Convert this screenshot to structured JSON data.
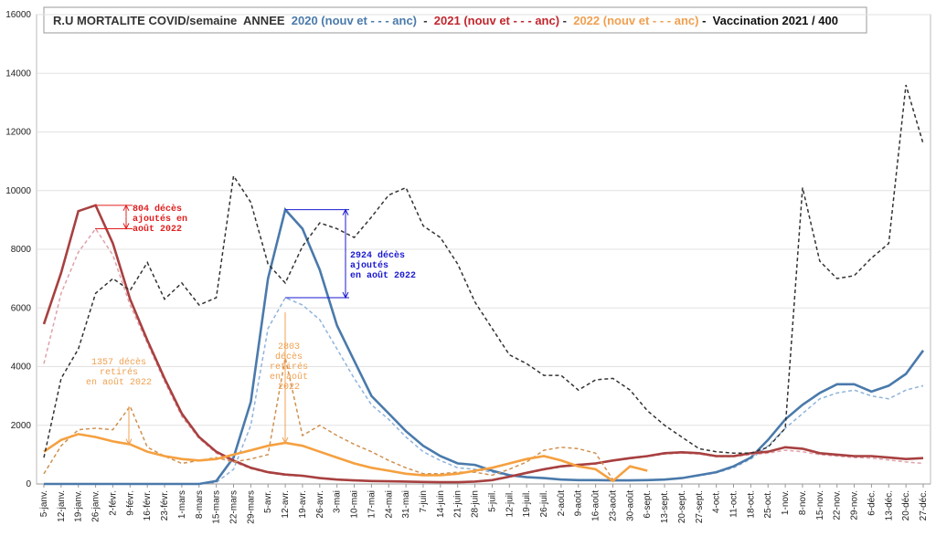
{
  "chart_data": {
    "type": "line",
    "title_parts": [
      {
        "text": "R.U MORTALITE COVID/semaine  ANNEE  ",
        "color": "#333333"
      },
      {
        "text": "2020 (nouv et - - - anc)",
        "color": "#4a7aab"
      },
      {
        "text": "  -  ",
        "color": "#333333"
      },
      {
        "text": "2021 (nouv et - - - anc)",
        "color": "#c0272d"
      },
      {
        "text": " -  ",
        "color": "#333333"
      },
      {
        "text": "2022 (nouv et - - - anc)",
        "color": "#f0a050"
      },
      {
        "text": " -  Vaccination 2021 / 400",
        "color": "#111111"
      }
    ],
    "categories": [
      "5-janv.",
      "12-janv.",
      "19-janv.",
      "26-janv.",
      "2-févr.",
      "9-févr.",
      "16-févr.",
      "23-févr.",
      "1-mars",
      "8-mars",
      "15-mars",
      "22-mars",
      "29-mars",
      "5-avr.",
      "12-avr.",
      "19-avr.",
      "26-avr.",
      "3-mai",
      "10-mai",
      "17-mai",
      "24-mai",
      "31-mai",
      "7-juin",
      "14-juin",
      "21-juin",
      "28-juin",
      "5-juil.",
      "12-juil.",
      "19-juil.",
      "26-juil.",
      "2-août",
      "9-août",
      "16-août",
      "23-août",
      "30-août",
      "6-sept.",
      "13-sept.",
      "20-sept.",
      "27-sept.",
      "4-oct.",
      "11-oct.",
      "18-oct.",
      "25-oct.",
      "1-nov.",
      "8-nov.",
      "15-nov.",
      "22-nov.",
      "29-nov.",
      "6-déc.",
      "13-déc.",
      "20-déc.",
      "27-déc."
    ],
    "series": [
      {
        "color": "#8fb3dc",
        "dashed": true,
        "values": [
          0,
          0,
          0,
          0,
          0,
          0,
          0,
          0,
          0,
          0,
          50,
          500,
          2000,
          5300,
          6350,
          6100,
          5600,
          4600,
          3600,
          2700,
          2200,
          1600,
          1100,
          800,
          550,
          500,
          400,
          280,
          220,
          190,
          150,
          130,
          130,
          120,
          120,
          130,
          150,
          200,
          280,
          380,
          550,
          850,
          1300,
          1900,
          2400,
          2900,
          3100,
          3200,
          3000,
          2900,
          3200,
          3350
        ]
      },
      {
        "color": "#4a7aab",
        "dashed": false,
        "values": [
          0,
          0,
          0,
          0,
          0,
          0,
          0,
          0,
          0,
          0,
          100,
          900,
          2800,
          7000,
          9350,
          8700,
          7300,
          5400,
          4200,
          3000,
          2400,
          1800,
          1300,
          950,
          700,
          650,
          450,
          300,
          230,
          200,
          150,
          130,
          130,
          120,
          120,
          130,
          150,
          200,
          300,
          400,
          600,
          900,
          1500,
          2200,
          2700,
          3100,
          3400,
          3400,
          3150,
          3350,
          3750,
          4550
        ]
      },
      {
        "color": "#e0a0a8",
        "dashed": true,
        "values": [
          4100,
          6500,
          7900,
          8700,
          7800,
          6100,
          4800,
          3500,
          2300,
          1550,
          1050,
          750,
          520,
          380,
          300,
          260,
          190,
          140,
          110,
          95,
          85,
          75,
          65,
          55,
          55,
          75,
          120,
          230,
          360,
          480,
          580,
          630,
          680,
          780,
          860,
          930,
          1020,
          1050,
          1020,
          930,
          930,
          1000,
          1050,
          1150,
          1100,
          1000,
          950,
          900,
          880,
          820,
          750,
          700
        ]
      },
      {
        "color": "#a84040",
        "dashed": false,
        "values": [
          5450,
          7200,
          9300,
          9500,
          8200,
          6300,
          4900,
          3600,
          2400,
          1600,
          1100,
          800,
          550,
          400,
          320,
          280,
          200,
          150,
          120,
          100,
          90,
          80,
          70,
          60,
          60,
          80,
          130,
          250,
          380,
          500,
          600,
          650,
          700,
          800,
          880,
          950,
          1050,
          1080,
          1050,
          950,
          950,
          1050,
          1100,
          1250,
          1200,
          1050,
          1000,
          950,
          950,
          900,
          850,
          880
        ]
      },
      {
        "color": "#d09050",
        "dashed": true,
        "values": [
          350,
          1300,
          1850,
          1900,
          1850,
          2650,
          1250,
          950,
          700,
          800,
          900,
          750,
          850,
          1000,
          4300,
          1650,
          2000,
          1650,
          1350,
          1100,
          800,
          550,
          350,
          350,
          400,
          400,
          300,
          500,
          750,
          1150,
          1250,
          1200,
          1050,
          150,
          null,
          null,
          null,
          null,
          null,
          null,
          null,
          null,
          null,
          null,
          null,
          null,
          null,
          null,
          null,
          null,
          null,
          null
        ]
      },
      {
        "color": "#f5a040",
        "dashed": false,
        "values": [
          1100,
          1500,
          1700,
          1600,
          1450,
          1350,
          1100,
          950,
          850,
          800,
          850,
          1000,
          1150,
          1300,
          1400,
          1300,
          1100,
          900,
          700,
          550,
          450,
          350,
          300,
          300,
          350,
          450,
          550,
          700,
          850,
          950,
          800,
          600,
          500,
          100,
          600,
          450,
          null,
          null,
          null,
          null,
          null,
          null,
          null,
          null,
          null,
          null,
          null,
          null,
          null,
          null,
          null,
          null
        ]
      },
      {
        "color": "#333333",
        "dashed": true,
        "values": [
          900,
          3600,
          4600,
          6500,
          7000,
          6600,
          7550,
          6300,
          6850,
          6100,
          6350,
          10500,
          9600,
          7500,
          6850,
          8100,
          8900,
          8700,
          8400,
          9100,
          9850,
          10100,
          8800,
          8400,
          7500,
          6200,
          5300,
          4400,
          4100,
          3700,
          3700,
          3200,
          3550,
          3600,
          3200,
          2500,
          2000,
          1600,
          1200,
          1100,
          1050,
          1050,
          1250,
          1900,
          10100,
          7600,
          7000,
          7100,
          7700,
          8200,
          13600,
          11600
        ]
      }
    ],
    "annotations": [
      {
        "lines": [
          "804 décès",
          "ajoutés en",
          "août 2022"
        ],
        "color": "#e02020"
      },
      {
        "lines": [
          "2924 décès",
          "ajoutés",
          "en août 2022"
        ],
        "color": "#1a1ad0"
      },
      {
        "lines": [
          "1357 décès",
          "retirés",
          "en août 2022"
        ],
        "color": "#f0a050"
      },
      {
        "lines": [
          "2803",
          "décès",
          "retirés",
          "en août",
          "2022"
        ],
        "color": "#f0a050"
      }
    ],
    "ylim": [
      0,
      16000
    ],
    "yticks": [
      0,
      2000,
      4000,
      6000,
      8000,
      10000,
      12000,
      14000,
      16000
    ],
    "grid": true
  }
}
